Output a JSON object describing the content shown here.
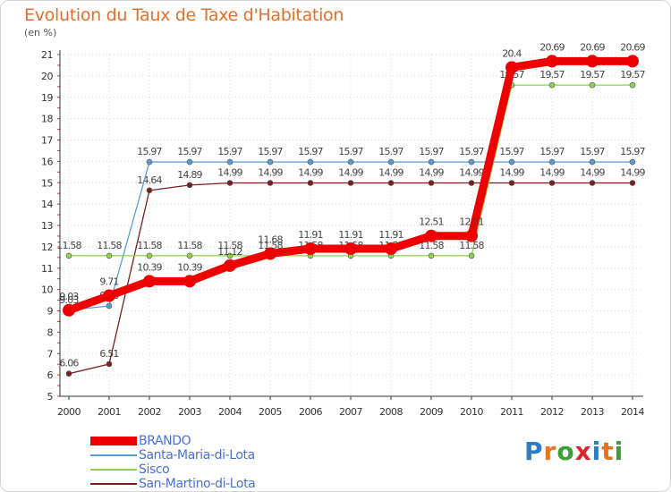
{
  "header": {
    "title": "Evolution du Taux de Taxe d'Habitation",
    "unit": "(en %)"
  },
  "logo": {
    "text": "Proxiti",
    "colors": [
      "#2e7cc4",
      "#e8731f",
      "#3aa035",
      "#d8282a",
      "#2e7cc4",
      "#e8731f",
      "#3aa035"
    ]
  },
  "chart_data": {
    "type": "line",
    "title": "Evolution du Taux de Taxe d'Habitation",
    "ylabel": "(en %)",
    "xlabel": "",
    "x": [
      "2000",
      "2001",
      "2002",
      "2003",
      "2004",
      "2005",
      "2006",
      "2007",
      "2008",
      "2009",
      "2010",
      "2011",
      "2012",
      "2013",
      "2014"
    ],
    "ylim": [
      5,
      21
    ],
    "yticks": [
      5,
      6,
      7,
      8,
      9,
      10,
      11,
      12,
      13,
      14,
      15,
      16,
      17,
      18,
      19,
      20,
      21
    ],
    "grid": true,
    "legend_position": "bottom-left",
    "series": [
      {
        "name": "San-Martino-di-Lota",
        "color": "#7a1f1f",
        "values": [
          6.06,
          6.51,
          14.64,
          14.89,
          14.99,
          14.99,
          14.99,
          14.99,
          14.99,
          14.99,
          14.99,
          14.99,
          14.99,
          14.99,
          14.99
        ],
        "labels": [
          "6.06",
          "6.51",
          "14.64",
          "14.89",
          "14.99",
          "14.99",
          "14.99",
          "14.99",
          "14.99",
          "14.99",
          "14.99",
          "14.99",
          "14.99",
          "14.99",
          "14.99"
        ]
      },
      {
        "name": "Santa-Maria-di-Lota",
        "color": "#5b9bd5",
        "values": [
          9.03,
          9.23,
          15.97,
          15.97,
          15.97,
          15.97,
          15.97,
          15.97,
          15.97,
          15.97,
          15.97,
          15.97,
          15.97,
          15.97,
          15.97
        ],
        "labels": [
          "9.03",
          "9.23",
          "15.97",
          "15.97",
          "15.97",
          "15.97",
          "15.97",
          "15.97",
          "15.97",
          "15.97",
          "15.97",
          "15.97",
          "15.97",
          "15.97",
          "15.97"
        ]
      },
      {
        "name": "Sisco",
        "color": "#8fd14f",
        "values": [
          11.58,
          11.58,
          11.58,
          11.58,
          11.58,
          11.58,
          11.58,
          11.58,
          11.58,
          11.58,
          11.58,
          19.57,
          19.57,
          19.57,
          19.57
        ],
        "labels": [
          "11.58",
          "11.58",
          "11.58",
          "11.58",
          "11.58",
          "11.58",
          "11.58",
          "11.58",
          "11.58",
          "11.58",
          "11.58",
          "19.57",
          "19.57",
          "19.57",
          "19.57"
        ]
      },
      {
        "name": "BRANDO",
        "color": "#ee0000",
        "values": [
          9.03,
          9.71,
          10.39,
          10.39,
          11.12,
          11.68,
          11.91,
          11.91,
          11.91,
          12.51,
          12.51,
          20.4,
          20.69,
          20.69,
          20.69
        ],
        "labels": [
          "9.03",
          "9.71",
          "10.39",
          "10.39",
          "11.12",
          "11.68",
          "11.91",
          "11.91",
          "11.91",
          "12.51",
          "12.51",
          "20.4",
          "20.69",
          "20.69",
          "20.69"
        ]
      }
    ],
    "legend": [
      "BRANDO",
      "Santa-Maria-di-Lota",
      "Sisco",
      "San-Martino-di-Lota"
    ]
  }
}
